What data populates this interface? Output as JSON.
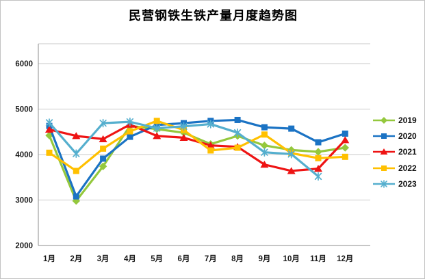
{
  "title": "民营钢铁生铁产量月度趋势图",
  "colors": {
    "green_2019": "#94C83D",
    "blue_2020": "#1B73C4",
    "red_2021": "#EE1414",
    "gold_2022": "#FFC000",
    "teal_2023": "#55AFCE",
    "gridline": "#c9c9c9",
    "axis_line": "#8e8e8e",
    "text": "#1a1a1a"
  },
  "chart_data": {
    "type": "line",
    "title": "民营钢铁生铁产量月度趋势图",
    "categories": [
      "1月",
      "2月",
      "3月",
      "4月",
      "5月",
      "6月",
      "7月",
      "8月",
      "9月",
      "10月",
      "11月",
      "12月"
    ],
    "yticks": [
      2000,
      3000,
      4000,
      5000,
      6000
    ],
    "ylim": [
      2000,
      6400
    ],
    "xlabel": "",
    "ylabel": "",
    "grid": true,
    "legend_position": "right",
    "series": [
      {
        "name": "2019",
        "marker": "diamond",
        "color_key": "green_2019",
        "values": [
          4420,
          2980,
          3740,
          4630,
          4560,
          4480,
          4230,
          4410,
          4200,
          4100,
          4060,
          4150
        ]
      },
      {
        "name": "2020",
        "marker": "square",
        "color_key": "blue_2020",
        "values": [
          4630,
          3080,
          3910,
          4390,
          4650,
          4690,
          4740,
          4760,
          4600,
          4570,
          4270,
          4460
        ]
      },
      {
        "name": "2021",
        "marker": "triangle",
        "color_key": "red_2021",
        "values": [
          4550,
          4410,
          4340,
          4660,
          4410,
          4370,
          4200,
          4170,
          3780,
          3640,
          3690,
          4320
        ]
      },
      {
        "name": "2022",
        "marker": "square",
        "color_key": "gold_2022",
        "values": [
          4040,
          3640,
          4130,
          4510,
          4740,
          4540,
          4090,
          4150,
          4440,
          4030,
          3920,
          3950
        ]
      },
      {
        "name": "2023",
        "marker": "asterisk",
        "color_key": "teal_2023",
        "values": [
          4700,
          4020,
          4690,
          4720,
          4580,
          4620,
          4670,
          4480,
          4050,
          4010,
          3520,
          null
        ]
      }
    ]
  }
}
